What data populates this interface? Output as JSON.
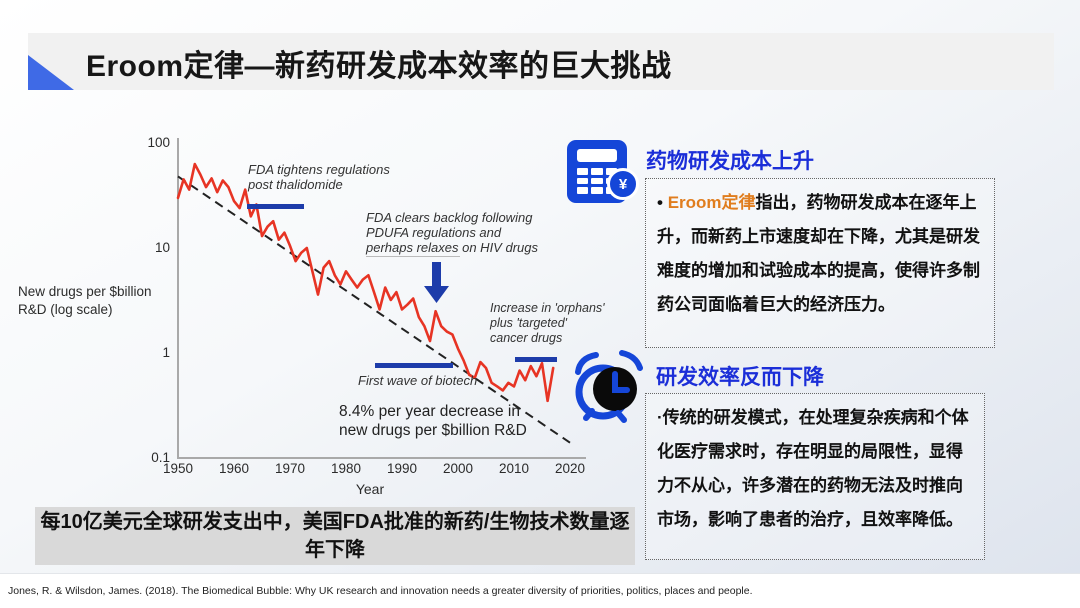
{
  "slide": {
    "title": "Eroom定律—新药研发成本效率的巨大挑战",
    "caption": "每10亿美元全球研发支出中，美国FDA批准的新药/生物技术数量逐年下降",
    "footer_citation": "Jones, R. & Wilsdon, James.  (2018).  The Biomedical Bubble: Why UK research and innovation needs a greater diversity of priorities, politics, places and people."
  },
  "colors": {
    "accent_triangle": "#3f6ae6",
    "heading_blue": "#1b2ed8",
    "annotation_blue": "#1d3caa",
    "line_red": "#e73424",
    "trend_black": "#222222",
    "highlight_orange": "#e07d1e",
    "caption_bg": "#d9d9d9",
    "icon_blue": "#1546d8"
  },
  "right_panel": {
    "sections": [
      {
        "icon": "calculator-yen-icon",
        "heading": "药物研发成本上升",
        "bullet": "• ",
        "highlight": "Eroom定律",
        "body": "指出，药物研发成本在逐年上升，而新药上市速度却在下降，尤其是研发难度的增加和试验成本的提高，使得许多制药公司面临着巨大的经济压力。"
      },
      {
        "icon": "alarm-clock-icon",
        "heading": "研发效率反而下降",
        "bullet": "·",
        "highlight": "",
        "body": "传统的研发模式，在处理复杂疾病和个体化医疗需求时，存在明显的局限性，显得力不从心，许多潜在的药物无法及时推向市场，影响了患者的治疗，且效率降低。"
      }
    ]
  },
  "chart_data": {
    "type": "line",
    "xlabel": "Year",
    "ylabel": "New drugs per $billion R&D (log scale)",
    "x_ticks": [
      1950,
      1960,
      1970,
      1980,
      1990,
      2000,
      2010,
      2020
    ],
    "y_ticks": [
      "100",
      "10",
      "1",
      "0.1"
    ],
    "xlim": [
      1950,
      2020
    ],
    "ylim": [
      0.1,
      100
    ],
    "scale": "log-y",
    "grid": false,
    "x_start": 1950,
    "x_step": 1,
    "series": [
      {
        "name": "New drugs per $billion R&D",
        "color": "#e73424",
        "values": [
          30,
          45,
          36,
          63,
          50,
          38,
          46,
          34,
          44,
          38,
          28,
          24,
          36,
          20,
          26,
          13,
          16,
          18,
          12,
          14,
          10.5,
          7.5,
          9,
          10,
          6,
          3.6,
          6.5,
          7.5,
          5.5,
          4.5,
          6,
          5,
          4.2,
          5,
          5.5,
          3.8,
          2.6,
          4.2,
          3.2,
          3.8,
          2.6,
          2.9,
          3.3,
          2.2,
          1.8,
          1.3,
          2.5,
          1.8,
          1.6,
          1.5,
          1.1,
          0.85,
          0.62,
          0.58,
          0.82,
          0.72,
          0.52,
          0.48,
          0.44,
          0.52,
          0.48,
          0.68,
          0.55,
          0.75,
          0.6,
          0.8,
          0.35,
          0.72
        ]
      },
      {
        "name": "Trend -8.4% per year",
        "color": "#222222",
        "style": "dashed",
        "x": [
          1950,
          2020
        ],
        "values": [
          48,
          0.14
        ]
      }
    ],
    "annotations": [
      {
        "id": "thalidomide",
        "text": "FDA tightens regulations\npost thalidomide"
      },
      {
        "id": "pdufa",
        "text": "FDA clears backlog following\nPDUFA regulations and\nperhaps relaxes on HIV drugs"
      },
      {
        "id": "orphans",
        "text": "Increase in 'orphans'\nplus 'targeted'\ncancer drugs"
      },
      {
        "id": "biotech",
        "text": "First wave of biotech"
      },
      {
        "id": "rate",
        "text": "8.4% per year decrease in\nnew drugs per $billion R&D"
      }
    ]
  }
}
